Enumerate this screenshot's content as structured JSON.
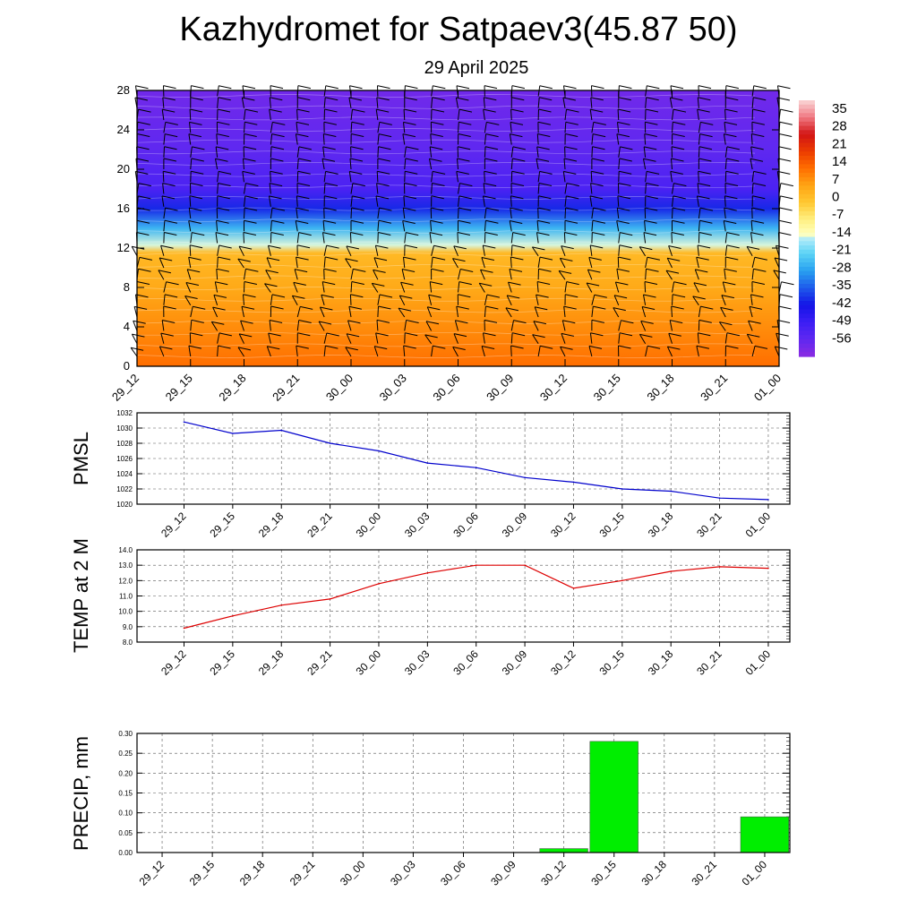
{
  "title": "Kazhydromet for Satpaev3(45.87 50)",
  "subtitle": "29 April 2025",
  "colors": {
    "pmsl_line": "#0000cc",
    "temp_line": "#dd0000",
    "precip_bar": "#00ee00"
  },
  "chart_data": [
    {
      "type": "heatmap",
      "title": "",
      "x_ticks": [
        "29_12",
        "29_15",
        "29_18",
        "29_21",
        "30_00",
        "30_03",
        "30_06",
        "30_09",
        "30_12",
        "30_15",
        "30_18",
        "30_21",
        "01_00"
      ],
      "y_ticks": [
        "0",
        "4",
        "8",
        "12",
        "16",
        "20",
        "24",
        "28"
      ],
      "ylim": [
        0,
        28
      ],
      "colorbar_labels": [
        "35",
        "28",
        "21",
        "14",
        "7",
        "0",
        "-7",
        "-14",
        "-21",
        "-28",
        "-35",
        "-42",
        "-49",
        "-56"
      ],
      "colorbar_range": [
        -63,
        42
      ],
      "layers": [
        {
          "level": 0,
          "value": 14
        },
        {
          "level": 4,
          "value": 10
        },
        {
          "level": 8,
          "value": 6
        },
        {
          "level": 11.5,
          "value": 3
        },
        {
          "level": 12.3,
          "value": -14
        },
        {
          "level": 14,
          "value": -25
        },
        {
          "level": 16,
          "value": -40
        },
        {
          "level": 18,
          "value": -52
        },
        {
          "level": 22,
          "value": -56
        },
        {
          "level": 28,
          "value": -59
        }
      ],
      "overlay": "wind barbs"
    },
    {
      "type": "line",
      "ylabel": "PMSL",
      "x": [
        "29_12",
        "29_15",
        "29_18",
        "29_21",
        "30_00",
        "30_03",
        "30_06",
        "30_09",
        "30_12",
        "30_15",
        "30_18",
        "30_21",
        "01_00"
      ],
      "values": [
        1030.8,
        1029.3,
        1029.7,
        1028.0,
        1027.0,
        1025.4,
        1024.8,
        1023.5,
        1022.9,
        1022.0,
        1021.7,
        1020.8,
        1020.6
      ],
      "y_ticks": [
        "1020",
        "1022",
        "1024",
        "1026",
        "1028",
        "1030",
        "1032"
      ],
      "ylim": [
        1020,
        1032
      ],
      "grid": true
    },
    {
      "type": "line",
      "ylabel": "TEMP at 2 M",
      "x": [
        "29_12",
        "29_15",
        "29_18",
        "29_21",
        "30_00",
        "30_03",
        "30_06",
        "30_09",
        "30_12",
        "30_15",
        "30_18",
        "30_21",
        "01_00"
      ],
      "values": [
        8.9,
        9.7,
        10.4,
        10.8,
        11.8,
        12.5,
        13.0,
        13.0,
        11.5,
        12.0,
        12.6,
        12.9,
        12.8
      ],
      "y_ticks": [
        "8.0",
        "9.0",
        "10.0",
        "11.0",
        "12.0",
        "13.0",
        "14.0"
      ],
      "ylim": [
        8,
        14
      ],
      "grid": true
    },
    {
      "type": "bar",
      "ylabel": "PRECIP, mm",
      "categories": [
        "29_12",
        "29_15",
        "29_18",
        "29_21",
        "30_00",
        "30_03",
        "30_06",
        "30_09",
        "30_12",
        "30_15",
        "30_18",
        "30_21",
        "01_00"
      ],
      "values": [
        0,
        0,
        0,
        0,
        0,
        0,
        0,
        0,
        0.01,
        0.28,
        0,
        0,
        0.09
      ],
      "y_ticks": [
        "0.00",
        "0.05",
        "0.10",
        "0.15",
        "0.20",
        "0.25",
        "0.30"
      ],
      "ylim": [
        0,
        0.3
      ],
      "grid": true
    }
  ]
}
